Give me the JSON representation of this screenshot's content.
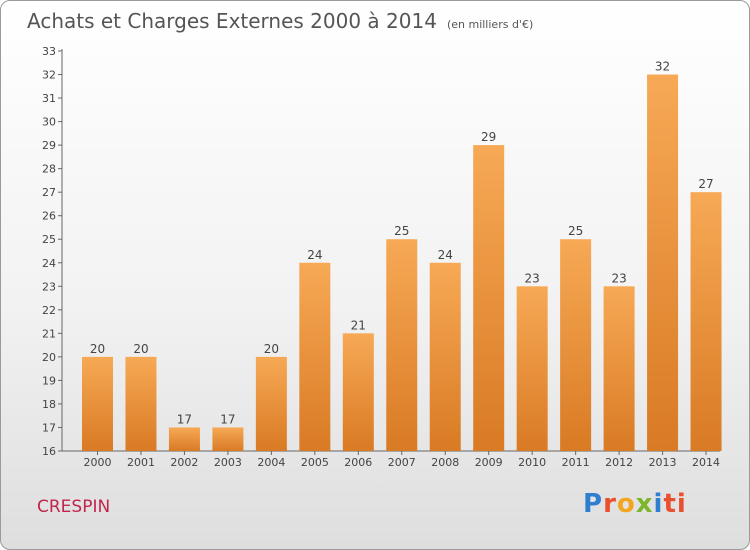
{
  "header": {
    "title": "Achats et Charges Externes 2000 à 2014",
    "subtitle": "(en milliers d'€)"
  },
  "footer": {
    "commune": "CRESPIN",
    "logo_text": "Proxiti",
    "logo_letters": [
      "P",
      "r",
      "o",
      "x",
      "i",
      "ti"
    ]
  },
  "colors": {
    "bar_light": "#f7a955",
    "bar_dark": "#d97a24",
    "title": "#555555",
    "commune": "#c0264b"
  },
  "chart_data": {
    "type": "bar",
    "title": "Achats et Charges Externes 2000 à 2014",
    "subtitle": "(en milliers d'€)",
    "xlabel": "",
    "ylabel": "",
    "categories": [
      "2000",
      "2001",
      "2002",
      "2003",
      "2004",
      "2005",
      "2006",
      "2007",
      "2008",
      "2009",
      "2010",
      "2011",
      "2012",
      "2013",
      "2014"
    ],
    "values": [
      20,
      20,
      17,
      17,
      20,
      24,
      21,
      25,
      24,
      29,
      23,
      25,
      23,
      32,
      27
    ],
    "ylim": [
      16,
      33
    ],
    "yticks": [
      16,
      17,
      18,
      19,
      20,
      21,
      22,
      23,
      24,
      25,
      26,
      27,
      28,
      29,
      30,
      31,
      32,
      33
    ],
    "grid": false,
    "data_labels": true
  }
}
